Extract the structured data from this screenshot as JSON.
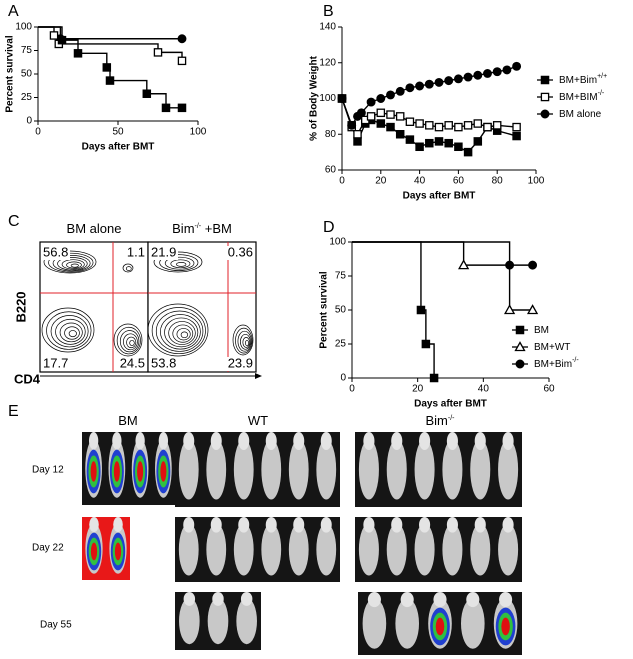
{
  "chart_data": [
    {
      "panel": "A",
      "type": "step",
      "ylabel": "Percent survival",
      "xlabel": "Days after BMT",
      "xlim": [
        0,
        100
      ],
      "xticks": [
        0,
        50,
        100
      ],
      "ylim": [
        0,
        100
      ],
      "yticks": [
        0,
        25,
        50,
        75,
        100
      ],
      "series": [
        {
          "marker": "circle",
          "color": "#000000",
          "x": [
            0,
            14,
            90
          ],
          "values": [
            100,
            87.5,
            87.5
          ]
        },
        {
          "marker": "square-open",
          "color": "#000000",
          "x": [
            0,
            10,
            13,
            75,
            90
          ],
          "values": [
            100,
            91,
            82,
            73,
            64
          ]
        },
        {
          "marker": "square",
          "color": "#000000",
          "x": [
            0,
            15,
            25,
            43,
            45,
            68,
            80,
            90
          ],
          "values": [
            100,
            86,
            72,
            57,
            43,
            29,
            14,
            14
          ]
        }
      ]
    },
    {
      "panel": "B",
      "type": "line",
      "ylabel": "% of Body Weight",
      "xlabel": "Days after BMT",
      "xlim": [
        0,
        100
      ],
      "xticks": [
        0,
        20,
        40,
        60,
        80,
        100
      ],
      "ylim": [
        60,
        140
      ],
      "yticks": [
        60,
        80,
        100,
        120,
        140
      ],
      "series": [
        {
          "name": "BM+Bim",
          "name_sup": "+/+",
          "marker": "square",
          "color": "#000000",
          "x": [
            0,
            5,
            8,
            12,
            15,
            20,
            25,
            30,
            35,
            40,
            45,
            50,
            55,
            60,
            65,
            70,
            75,
            80,
            90
          ],
          "values": [
            100,
            85,
            76,
            86,
            88,
            86,
            84,
            80,
            77,
            73,
            75,
            76,
            75,
            73,
            70,
            76,
            84,
            82,
            79
          ]
        },
        {
          "name": "BM+BIM",
          "name_sup": "-/-",
          "marker": "square-open",
          "color": "#000000",
          "x": [
            0,
            5,
            8,
            12,
            15,
            20,
            25,
            30,
            35,
            40,
            45,
            50,
            55,
            60,
            65,
            70,
            75,
            80,
            90
          ],
          "values": [
            100,
            84,
            80,
            88,
            90,
            92,
            91,
            90,
            87,
            86,
            85,
            84,
            85,
            84,
            85,
            86,
            84,
            85,
            84
          ]
        },
        {
          "name": "BM alone",
          "marker": "circle",
          "color": "#000000",
          "x": [
            0,
            5,
            8,
            10,
            15,
            20,
            25,
            30,
            35,
            40,
            45,
            50,
            55,
            60,
            65,
            70,
            75,
            80,
            85,
            90
          ],
          "values": [
            100,
            85,
            90,
            92,
            98,
            100,
            102,
            104,
            106,
            107,
            108,
            109,
            110,
            111,
            112,
            113,
            114,
            115,
            116,
            118
          ]
        }
      ]
    },
    {
      "panel": "D",
      "type": "step",
      "ylabel": "Percent survival",
      "xlabel": "Days after BMT",
      "xlim": [
        0,
        60
      ],
      "xticks": [
        0,
        20,
        40,
        60
      ],
      "ylim": [
        0,
        100
      ],
      "yticks": [
        0,
        25,
        50,
        75,
        100
      ],
      "series": [
        {
          "name": "BM",
          "marker": "square",
          "color": "#000000",
          "x": [
            0,
            21,
            22.5,
            25
          ],
          "values": [
            100,
            50,
            25,
            0
          ]
        },
        {
          "name": "BM+WT",
          "marker": "triangle-open",
          "color": "#000000",
          "x": [
            0,
            34,
            48,
            55
          ],
          "values": [
            100,
            83,
            50,
            50
          ]
        },
        {
          "name": "BM+Bim",
          "name_sup": "-/-",
          "marker": "circle",
          "color": "#000000",
          "x": [
            0,
            48,
            55
          ],
          "values": [
            100,
            83,
            83
          ]
        }
      ]
    }
  ],
  "flow": {
    "panel": "C",
    "ylabel": "B220",
    "xlabel": "CD4",
    "plots": [
      {
        "title": "BM alone",
        "quadrants": [
          56.8,
          1.1,
          17.7,
          24.5
        ]
      },
      {
        "title": "Bim",
        "title_sup": "-/-",
        "title_suffix": " +BM",
        "quadrants": [
          21.9,
          0.36,
          53.8,
          23.9
        ]
      }
    ]
  },
  "imaging": {
    "panel": "E",
    "columns": [
      {
        "label": "BM"
      },
      {
        "label": "WT"
      },
      {
        "label": "Bim",
        "label_sup": "-/-"
      }
    ],
    "rows": [
      "Day 12",
      "Day 22",
      "Day 55"
    ]
  }
}
